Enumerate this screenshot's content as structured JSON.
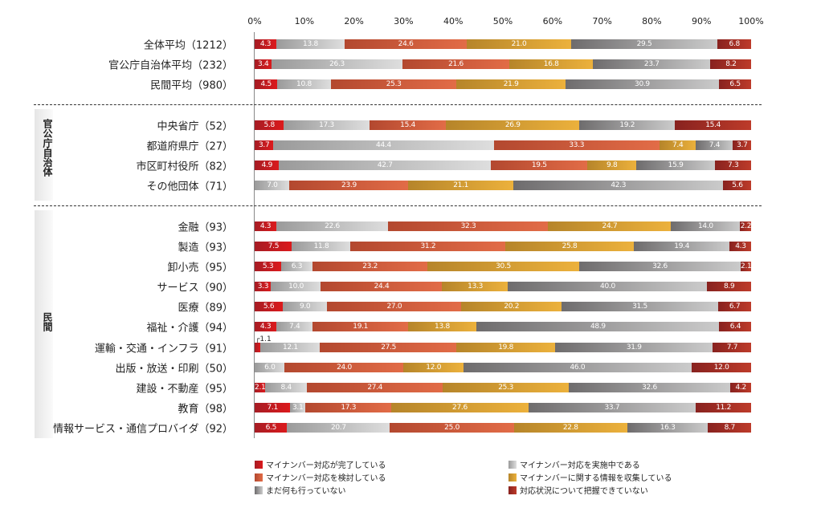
{
  "chart_data": {
    "type": "bar",
    "orientation": "horizontal",
    "stacked": true,
    "xlim": [
      0,
      100
    ],
    "x_ticks": [
      "0%",
      "10%",
      "20%",
      "30%",
      "40%",
      "50%",
      "60%",
      "70%",
      "80%",
      "90%",
      "100%"
    ],
    "series": [
      {
        "name": "マイナンバー対応が完了している",
        "color": "#c81b20",
        "grad": [
          "#a61c24",
          "#dc1a1c"
        ]
      },
      {
        "name": "マイナンバー対応を実施中である",
        "color": "#bdbdbd",
        "grad": [
          "#9a9a9a",
          "#dedede"
        ]
      },
      {
        "name": "マイナンバー対応を検討している",
        "color": "#d0603e",
        "grad": [
          "#b3482f",
          "#e26c47"
        ]
      },
      {
        "name": "マイナンバーに関する情報を収集している",
        "color": "#d9a236",
        "grad": [
          "#b6852a",
          "#ecb13c"
        ]
      },
      {
        "name": "まだ何も行っていない",
        "color": "#999999",
        "grad": [
          "#6e6c6d",
          "#cbcbcb"
        ]
      },
      {
        "name": "対応状況について把握できていない",
        "color": "#a3302a",
        "grad": [
          "#88221f",
          "#bd3b2a"
        ]
      }
    ],
    "groups": [
      {
        "label": "",
        "rows": [
          {
            "label": "全体平均（1212）",
            "values": [
              4.3,
              13.8,
              24.6,
              21.0,
              29.5,
              6.8
            ]
          },
          {
            "label": "官公庁自治体平均（232）",
            "values": [
              3.4,
              26.3,
              21.6,
              16.8,
              23.7,
              8.2
            ]
          },
          {
            "label": "民間平均（980）",
            "values": [
              4.5,
              10.8,
              25.3,
              21.9,
              30.9,
              6.5
            ]
          }
        ]
      },
      {
        "label": "官公庁自治体",
        "rows": [
          {
            "label": "中央省庁（52）",
            "values": [
              5.8,
              17.3,
              15.4,
              26.9,
              19.2,
              15.4
            ]
          },
          {
            "label": "都道府県庁（27）",
            "values": [
              3.7,
              44.4,
              33.3,
              7.4,
              7.4,
              3.7
            ]
          },
          {
            "label": "市区町村役所（82）",
            "values": [
              4.9,
              42.7,
              19.5,
              9.8,
              15.9,
              7.3
            ]
          },
          {
            "label": "その他団体（71）",
            "values": [
              0,
              7.0,
              23.9,
              21.1,
              42.3,
              5.6
            ]
          }
        ]
      },
      {
        "label": "民間",
        "rows": [
          {
            "label": "金融（93）",
            "values": [
              4.3,
              22.6,
              32.3,
              24.7,
              14.0,
              2.2
            ]
          },
          {
            "label": "製造（93）",
            "values": [
              7.5,
              11.8,
              31.2,
              25.8,
              19.4,
              4.3
            ]
          },
          {
            "label": "卸小売（95）",
            "values": [
              5.3,
              6.3,
              23.2,
              30.5,
              32.6,
              2.1
            ]
          },
          {
            "label": "サービス（90）",
            "values": [
              3.3,
              10.0,
              24.4,
              13.3,
              40.0,
              8.9
            ]
          },
          {
            "label": "医療（89）",
            "values": [
              5.6,
              9.0,
              27.0,
              20.2,
              31.5,
              6.7
            ]
          },
          {
            "label": "福祉・介護（94）",
            "values": [
              4.3,
              7.4,
              19.1,
              13.8,
              48.9,
              6.4
            ]
          },
          {
            "label": "運輸・交通・インフラ（91）",
            "values": [
              1.1,
              12.1,
              27.5,
              19.8,
              31.9,
              7.7
            ],
            "note": "┌1.1"
          },
          {
            "label": "出版・放送・印刷（50）",
            "values": [
              0,
              6.0,
              24.0,
              12.0,
              46.0,
              12.0
            ]
          },
          {
            "label": "建設・不動産（95）",
            "values": [
              2.1,
              8.4,
              27.4,
              25.3,
              32.6,
              4.2
            ]
          },
          {
            "label": "教育（98）",
            "values": [
              7.1,
              3.1,
              17.3,
              27.6,
              33.7,
              11.2
            ]
          },
          {
            "label": "情報サービス・通信プロバイダ（92）",
            "values": [
              6.5,
              20.7,
              25.0,
              22.8,
              16.3,
              8.7
            ]
          }
        ]
      }
    ]
  }
}
